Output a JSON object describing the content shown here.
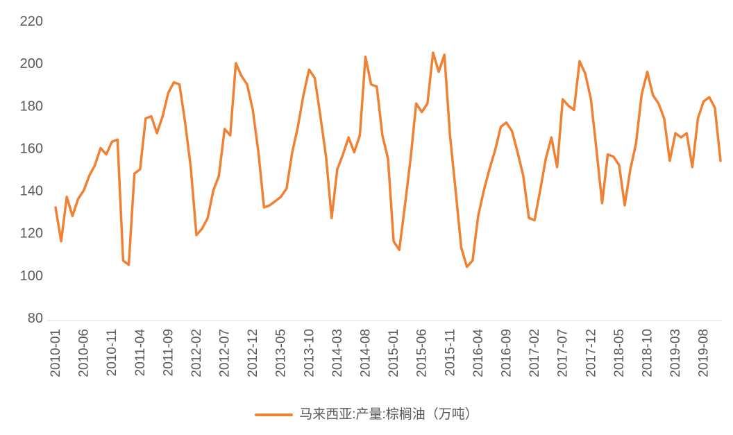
{
  "chart_data": {
    "type": "line",
    "title": "",
    "series_name": "马来西亚:产量:棕榈油（万吨）",
    "x": [
      "2010-01",
      "2010-02",
      "2010-03",
      "2010-04",
      "2010-05",
      "2010-06",
      "2010-07",
      "2010-08",
      "2010-09",
      "2010-10",
      "2010-11",
      "2010-12",
      "2011-01",
      "2011-02",
      "2011-03",
      "2011-04",
      "2011-05",
      "2011-06",
      "2011-07",
      "2011-08",
      "2011-09",
      "2011-10",
      "2011-11",
      "2011-12",
      "2012-01",
      "2012-02",
      "2012-03",
      "2012-04",
      "2012-05",
      "2012-06",
      "2012-07",
      "2012-08",
      "2012-09",
      "2012-10",
      "2012-11",
      "2012-12",
      "2013-01",
      "2013-02",
      "2013-03",
      "2013-04",
      "2013-05",
      "2013-06",
      "2013-07",
      "2013-08",
      "2013-09",
      "2013-10",
      "2013-11",
      "2013-12",
      "2014-01",
      "2014-02",
      "2014-03",
      "2014-04",
      "2014-05",
      "2014-06",
      "2014-07",
      "2014-08",
      "2014-09",
      "2014-10",
      "2014-11",
      "2014-12",
      "2015-01",
      "2015-02",
      "2015-03",
      "2015-04",
      "2015-05",
      "2015-06",
      "2015-07",
      "2015-08",
      "2015-09",
      "2015-10",
      "2015-11",
      "2015-12",
      "2016-01",
      "2016-02",
      "2016-03",
      "2016-04",
      "2016-05",
      "2016-06",
      "2016-07",
      "2016-08",
      "2016-09",
      "2016-10",
      "2016-11",
      "2016-12",
      "2017-01",
      "2017-02",
      "2017-03",
      "2017-04",
      "2017-05",
      "2017-06",
      "2017-07",
      "2017-08",
      "2017-09",
      "2017-10",
      "2017-11",
      "2017-12",
      "2018-01",
      "2018-02",
      "2018-03",
      "2018-04",
      "2018-05",
      "2018-06",
      "2018-07",
      "2018-08",
      "2018-09",
      "2018-10",
      "2018-11",
      "2018-12",
      "2019-01",
      "2019-02",
      "2019-03",
      "2019-04",
      "2019-05",
      "2019-06",
      "2019-07",
      "2019-08",
      "2019-09",
      "2019-10",
      "2019-11"
    ],
    "values": [
      132,
      116,
      137,
      128,
      136,
      140,
      147,
      152,
      160,
      157,
      163,
      164,
      107,
      105,
      148,
      150,
      174,
      175,
      167,
      175,
      186,
      191,
      190,
      172,
      151,
      119,
      122,
      127,
      140,
      147,
      169,
      166,
      200,
      194,
      190,
      178,
      158,
      132,
      133,
      135,
      137,
      141,
      158,
      170,
      185,
      197,
      193,
      175,
      156,
      127,
      150,
      157,
      165,
      158,
      166,
      203,
      190,
      189,
      166,
      155,
      116,
      112,
      133,
      155,
      181,
      177,
      181,
      205,
      196,
      204,
      166,
      140,
      113,
      104,
      107,
      128,
      140,
      150,
      159,
      170,
      172,
      168,
      158,
      147,
      127,
      126,
      140,
      155,
      165,
      151,
      183,
      180,
      178,
      201,
      195,
      183,
      159,
      134,
      157,
      156,
      152,
      133,
      150,
      162,
      185,
      196,
      185,
      181,
      174,
      154,
      167,
      165,
      167,
      151,
      174,
      182,
      184,
      179,
      154
    ],
    "ylim": [
      80,
      220
    ],
    "yticks": [
      80,
      100,
      120,
      140,
      160,
      180,
      200,
      220
    ],
    "xtick_every": 5,
    "xtick_labels": [
      "2010-01",
      "2010-06",
      "2010-11",
      "2011-04",
      "2011-09",
      "2012-02",
      "2012-07",
      "2012-12",
      "2013-05",
      "2013-10",
      "2014-03",
      "2014-08",
      "2015-01",
      "2015-06",
      "2015-11",
      "2016-04",
      "2016-09",
      "2017-02",
      "2017-07",
      "2017-12",
      "2018-05",
      "2018-10",
      "2019-03",
      "2019-08"
    ],
    "line_color": "#F08032",
    "axis_text_color": "#595959",
    "axis_line_color": "#D9D9D9",
    "legend_position": "bottom"
  },
  "legend": {
    "label": "马来西亚:产量:棕榈油（万吨）"
  }
}
